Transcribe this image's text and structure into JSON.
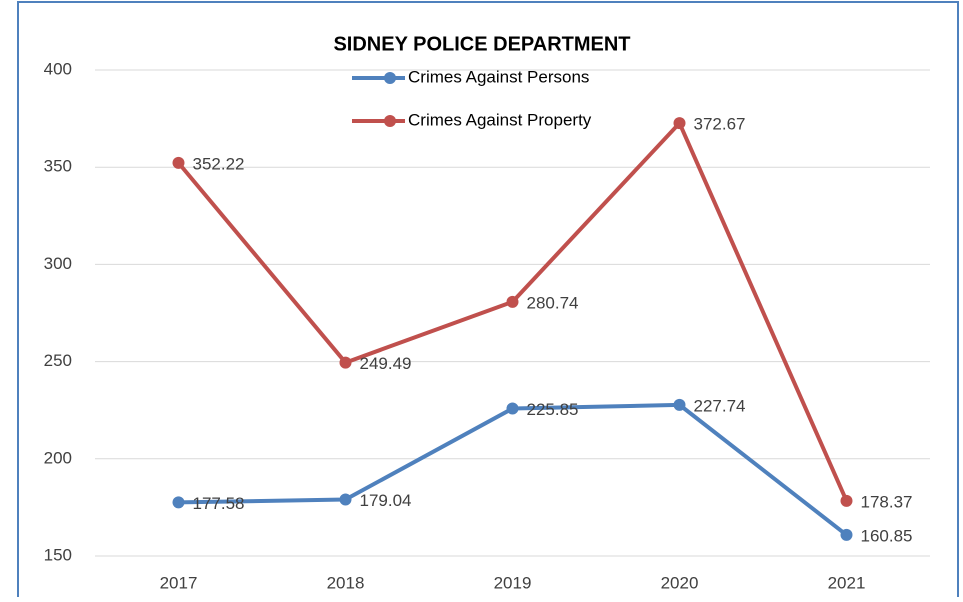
{
  "chart_data": {
    "type": "line",
    "title": "SIDNEY POLICE DEPARTMENT",
    "categories": [
      "2017",
      "2018",
      "2019",
      "2020",
      "2021"
    ],
    "series": [
      {
        "name": "Crimes Against Persons",
        "color": "#4f81bd",
        "values": [
          177.58,
          179.04,
          225.85,
          227.74,
          160.85
        ]
      },
      {
        "name": "Crimes Against Property",
        "color": "#c0504d",
        "values": [
          352.22,
          249.49,
          280.74,
          372.67,
          178.37
        ]
      }
    ],
    "ylim": [
      150,
      400
    ],
    "yticks": [
      150,
      200,
      250,
      300,
      350,
      400
    ],
    "grid": true,
    "legend": "top"
  }
}
